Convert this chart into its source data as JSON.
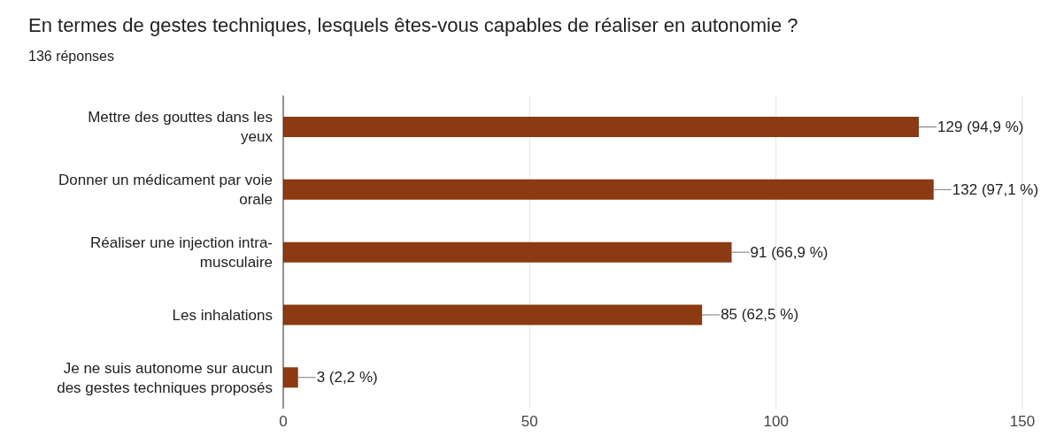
{
  "chart_data": {
    "type": "bar",
    "orientation": "horizontal",
    "title": "En termes de gestes techniques, lesquels êtes-vous capables de réaliser en autonomie ?",
    "subtitle": "136 réponses",
    "categories": [
      "Mettre des gouttes dans les yeux",
      "Donner un médicament par voie orale",
      "Réaliser une injection intra-musculaire",
      "Les inhalations",
      "Je ne suis autonome sur aucun des gestes techniques proposés"
    ],
    "values": [
      129,
      132,
      91,
      85,
      3
    ],
    "value_labels": [
      "129 (94,9 %)",
      "132 (97,1 %)",
      "91 (66,9 %)",
      "85 (62,5 %)",
      "3 (2,2 %)"
    ],
    "color": "#8b3a12",
    "xlim": [
      0,
      150
    ],
    "xticks": [
      0,
      50,
      100,
      150
    ],
    "grid": "x",
    "legend": false
  }
}
